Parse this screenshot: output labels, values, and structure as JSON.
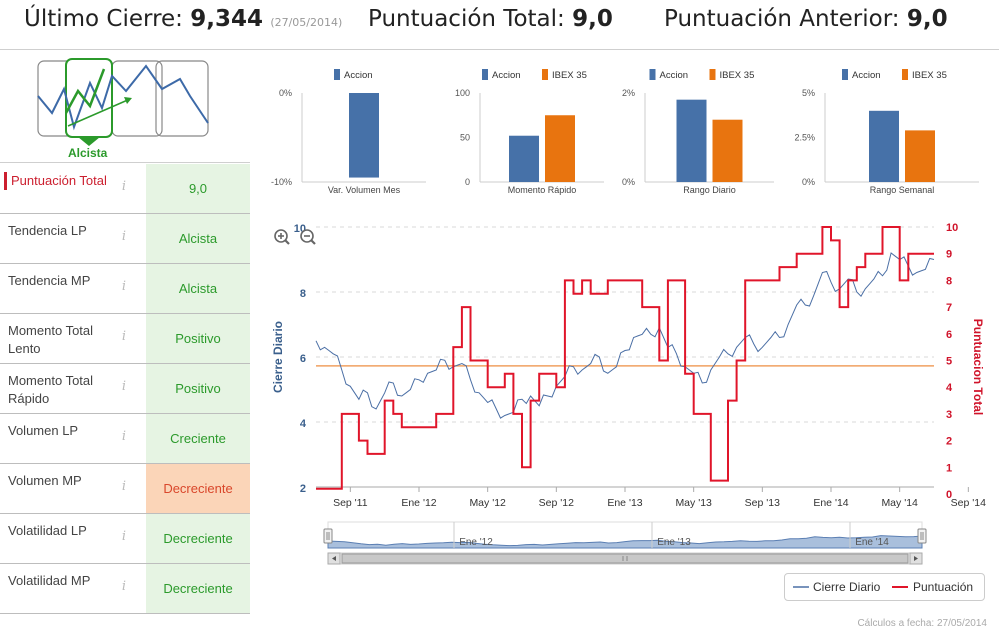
{
  "header": {
    "ultimo_label": "Último Cierre: ",
    "ultimo_value": "9,344",
    "ultimo_date": "(27/05/2014)",
    "total_label": "Puntuación Total: ",
    "total_value": "9,0",
    "anterior_label": "Puntuación Anterior: ",
    "anterior_value": "9,0"
  },
  "trend": {
    "label": "Alcista"
  },
  "rows": [
    {
      "label": "Puntuación Total",
      "value": "9,0",
      "info": "i"
    },
    {
      "label": "Tendencia LP",
      "value": "Alcista",
      "info": "i"
    },
    {
      "label": "Tendencia MP",
      "value": "Alcista",
      "info": "i"
    },
    {
      "label": "Momento Total Lento",
      "value": "Positivo",
      "info": "i"
    },
    {
      "label": "Momento Total Rápido",
      "value": "Positivo",
      "info": "i"
    },
    {
      "label": "Volumen LP",
      "value": "Creciente",
      "info": "i"
    },
    {
      "label": "Volumen MP",
      "value": "Decreciente",
      "info": "i"
    },
    {
      "label": "Volatilidad LP",
      "value": "Decreciente",
      "info": "i"
    },
    {
      "label": "Volatilidad MP",
      "value": "Decreciente",
      "info": "i"
    }
  ],
  "colors": {
    "accion": "#4671a8",
    "ibex": "#e8740f",
    "cierre": "#4b6fa5",
    "puntuacion": "#e0152a",
    "green": "#2b9a2b",
    "ref_line": "#f0a060"
  },
  "chart_data": [
    {
      "type": "bar",
      "categories": [
        "Var. Volumen Mes"
      ],
      "series": [
        {
          "name": "Accion",
          "values": [
            -9.5
          ]
        }
      ],
      "yticks": [
        "0%",
        "-10%"
      ],
      "ylim": [
        -10,
        0
      ]
    },
    {
      "type": "bar",
      "categories": [
        "Momento Rápido"
      ],
      "series": [
        {
          "name": "Accion",
          "values": [
            52
          ]
        },
        {
          "name": "IBEX 35",
          "values": [
            75
          ]
        }
      ],
      "yticks": [
        "100",
        "50",
        "0"
      ],
      "ylim": [
        0,
        100
      ]
    },
    {
      "type": "bar",
      "categories": [
        "Rango Diario"
      ],
      "series": [
        {
          "name": "Accion",
          "values": [
            1.85
          ]
        },
        {
          "name": "IBEX 35",
          "values": [
            1.4
          ]
        }
      ],
      "yticks": [
        "2%",
        "0%"
      ],
      "ylim": [
        0,
        2
      ]
    },
    {
      "type": "bar",
      "categories": [
        "Rango Semanal"
      ],
      "series": [
        {
          "name": "Accion",
          "values": [
            4.0
          ]
        },
        {
          "name": "IBEX 35",
          "values": [
            2.9
          ]
        }
      ],
      "yticks": [
        "5%",
        "2.5%",
        "0%"
      ],
      "ylim": [
        0,
        5
      ]
    },
    {
      "type": "line",
      "xticks": [
        "Sep '11",
        "Ene '12",
        "May '12",
        "Sep '12",
        "Ene '13",
        "May '13",
        "Sep '13",
        "Ene '14",
        "May '14",
        "Sep '14"
      ],
      "ylabel": "Cierre Diario",
      "y2label": "Puntuacion Total",
      "yticks": [
        "2",
        "4",
        "6",
        "8",
        "10"
      ],
      "y2ticks": [
        "0",
        "1",
        "2",
        "3",
        "4",
        "5",
        "6",
        "7",
        "8",
        "9",
        "10"
      ],
      "ylim": [
        2,
        10
      ],
      "y2lim": [
        0,
        10
      ],
      "reference_y2": 4.8,
      "navigator_labels": [
        "Ene '12",
        "Ene '13",
        "Ene '14"
      ],
      "legend": [
        "Cierre Diario",
        "Puntuación"
      ],
      "series": [
        {
          "name": "Cierre Diario",
          "x": [
            0,
            0.5,
            1,
            1.5,
            2,
            2.5,
            3,
            3.5,
            4,
            4.5,
            5,
            5.5,
            6,
            6.5,
            7,
            7.5,
            8,
            8.5,
            9,
            9.5,
            10,
            10.5,
            11,
            11.5,
            12,
            12.5,
            13,
            13.5,
            14,
            14.5,
            15,
            15.5,
            16,
            16.5,
            17,
            17.5,
            18,
            18.5,
            19,
            19.5,
            20,
            20.5,
            21,
            21.5,
            22,
            22.5,
            23,
            23.5,
            24,
            24.5,
            25,
            25.5,
            26,
            26.5,
            27,
            27.5,
            28,
            28.5,
            29,
            29.5,
            30,
            30.5,
            31,
            31.5,
            32,
            32.5,
            33,
            33.5,
            34,
            34.5,
            35,
            35.5,
            36
          ],
          "values": [
            6.5,
            6.3,
            6.1,
            5.6,
            5.1,
            4.7,
            4.9,
            4.4,
            4.9,
            5.2,
            4.8,
            5.0,
            5.3,
            5.5,
            5.6,
            5.9,
            5.7,
            5.8,
            5.3,
            4.9,
            4.6,
            4.4,
            4.2,
            4.3,
            4.7,
            4.8,
            4.5,
            4.8,
            5.1,
            5.4,
            5.7,
            5.6,
            5.8,
            6.0,
            5.5,
            5.7,
            6.2,
            6.6,
            6.7,
            6.7,
            6.9,
            6.3,
            6.1,
            5.7,
            5.5,
            5.2,
            5.6,
            6.0,
            6.1,
            6.3,
            6.6,
            6.4,
            6.3,
            6.6,
            6.6,
            7.0,
            7.6,
            7.6,
            7.9,
            8.6,
            8.3,
            8.1,
            8.4,
            8.0,
            8.1,
            8.4,
            8.5,
            9.2,
            9.0,
            8.8,
            8.6,
            8.7,
            9.0
          ]
        },
        {
          "name": "Puntuación",
          "x": [
            0,
            1,
            1.5,
            2.5,
            3,
            4,
            4.5,
            5,
            7,
            8,
            8.5,
            9,
            10,
            11,
            11.5,
            12,
            12.5,
            13,
            14,
            14.5,
            15,
            15.5,
            16,
            17,
            18,
            19,
            20,
            20.5,
            21,
            21.5,
            22,
            23,
            24,
            24.5,
            25,
            26,
            27,
            28,
            29,
            29.5,
            30,
            30.5,
            31,
            31.5,
            32,
            33,
            34,
            34.5,
            35,
            36
          ],
          "values": [
            0.2,
            0.2,
            3,
            2,
            1.5,
            3.5,
            3,
            2.5,
            3,
            5.5,
            7,
            5,
            4,
            4.5,
            3,
            1,
            3.5,
            4.5,
            4,
            8,
            7.5,
            8,
            7.5,
            8,
            8,
            7,
            5,
            8,
            8,
            4.5,
            3,
            0.5,
            3.5,
            5,
            8,
            8,
            8.5,
            9,
            9,
            10,
            9.5,
            7,
            8,
            8.5,
            9,
            10,
            8,
            9,
            9,
            9
          ]
        }
      ]
    }
  ],
  "footer": "Cálculos a fecha: 27/05/2014"
}
